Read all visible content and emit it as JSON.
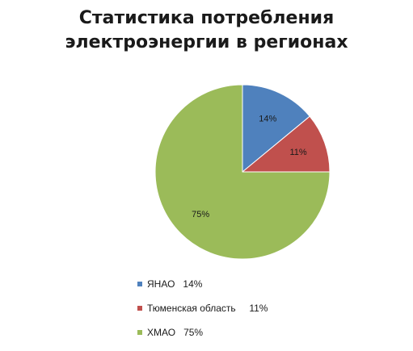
{
  "chart_data": {
    "type": "pie",
    "title": [
      "Статистика потребления",
      "электроэнергии в регионах"
    ],
    "slices": [
      {
        "label": "ЯНАО",
        "value": 14,
        "data_label": "14%",
        "legend_text": "ЯНАО   14%",
        "color": "#4f81bd"
      },
      {
        "label": "Тюменская область",
        "value": 11,
        "data_label": "11%",
        "legend_text": "Тюменская область     11%",
        "color": "#c0504d"
      },
      {
        "label": "ХМАО",
        "value": 75,
        "data_label": "75%",
        "legend_text": "ХМАО   75%",
        "color": "#9bbb59"
      }
    ],
    "legend_position": "bottom"
  }
}
